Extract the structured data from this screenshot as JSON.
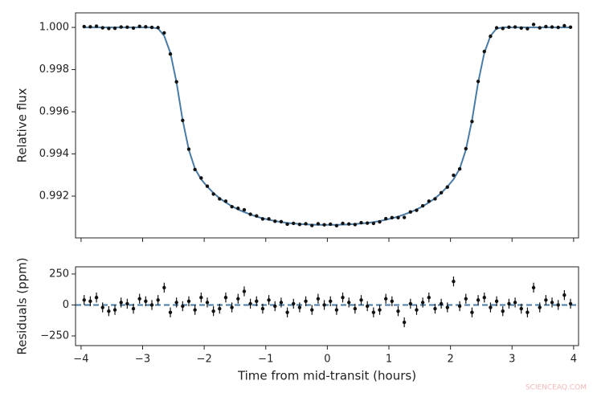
{
  "chart_data": [
    {
      "type": "scatter",
      "ylabel": "Relative flux",
      "x": [
        -3.95,
        -3.85,
        -3.75,
        -3.65,
        -3.55,
        -3.45,
        -3.35,
        -3.25,
        -3.15,
        -3.05,
        -2.95,
        -2.85,
        -2.75,
        -2.65,
        -2.55,
        -2.45,
        -2.35,
        -2.25,
        -2.15,
        -2.05,
        -1.95,
        -1.85,
        -1.75,
        -1.65,
        -1.55,
        -1.45,
        -1.35,
        -1.25,
        -1.15,
        -1.05,
        -0.95,
        -0.85,
        -0.75,
        -0.65,
        -0.55,
        -0.45,
        -0.35,
        -0.25,
        -0.15,
        -0.05,
        0.05,
        0.15,
        0.25,
        0.35,
        0.45,
        0.55,
        0.65,
        0.75,
        0.85,
        0.95,
        1.05,
        1.15,
        1.25,
        1.35,
        1.45,
        1.55,
        1.65,
        1.75,
        1.85,
        1.95,
        2.05,
        2.15,
        2.25,
        2.35,
        2.45,
        2.55,
        2.65,
        2.75,
        2.85,
        2.95,
        3.05,
        3.15,
        3.25,
        3.35,
        3.45,
        3.55,
        3.65,
        3.75,
        3.85,
        3.95
      ],
      "values": [
        1.00004,
        1.00003,
        1.00006,
        0.99998,
        0.99995,
        0.99996,
        1.00002,
        1.00001,
        0.99997,
        1.00005,
        1.00003,
        1.0,
        0.99999,
        0.99974,
        0.99874,
        0.99742,
        0.99559,
        0.99423,
        0.99326,
        0.99286,
        0.99247,
        0.9921,
        0.99187,
        0.99176,
        0.9915,
        0.99142,
        0.99135,
        0.99114,
        0.99106,
        0.99092,
        0.99092,
        0.99081,
        0.99079,
        0.99067,
        0.99071,
        0.99066,
        0.99069,
        0.99061,
        0.99069,
        0.99064,
        0.99067,
        0.9906,
        0.99071,
        0.99068,
        0.99065,
        0.99074,
        0.99072,
        0.99071,
        0.99078,
        0.99093,
        0.99098,
        0.99098,
        0.99099,
        0.99125,
        0.99133,
        0.99154,
        0.99176,
        0.99187,
        0.99216,
        0.99243,
        0.99299,
        0.99329,
        0.99425,
        0.99554,
        0.99744,
        0.99886,
        0.99958,
        0.99998,
        0.99995,
        1.00001,
        1.00002,
        0.99997,
        0.99994,
        1.00014,
        0.99998,
        1.00004,
        1.00002,
        1.0,
        1.00008,
        1.00001
      ],
      "color": "#111111",
      "model": {
        "color": "#4a7ba6",
        "values": [
          1.0,
          1.0,
          1.0,
          1.0,
          1.0,
          1.0,
          1.0,
          1.0,
          1.0,
          1.0,
          1.0,
          1.0,
          0.99995,
          0.9996,
          0.9988,
          0.9974,
          0.9956,
          0.9942,
          0.9933,
          0.9928,
          0.99245,
          0.99215,
          0.9919,
          0.9917,
          0.99152,
          0.99137,
          0.99124,
          0.99113,
          0.99103,
          0.99095,
          0.99088,
          0.99082,
          0.99077,
          0.99073,
          0.9907,
          0.99068,
          0.99066,
          0.99065,
          0.99064,
          0.99064,
          0.99064,
          0.99064,
          0.99065,
          0.99066,
          0.99068,
          0.9907,
          0.99073,
          0.99077,
          0.99082,
          0.99088,
          0.99095,
          0.99103,
          0.99113,
          0.99124,
          0.99137,
          0.99152,
          0.9917,
          0.9919,
          0.99215,
          0.99245,
          0.9928,
          0.9933,
          0.9942,
          0.9956,
          0.9974,
          0.9988,
          0.9996,
          0.99995,
          1.0,
          1.0,
          1.0,
          1.0,
          1.0,
          1.0,
          1.0,
          1.0,
          1.0,
          1.0,
          1.0,
          1.0
        ]
      },
      "xlim": [
        -4.09,
        4.08
      ],
      "ylim": [
        0.99002,
        1.00069
      ],
      "xticks": [
        -4,
        -3,
        -2,
        -1,
        0,
        1,
        2,
        3,
        4
      ],
      "yticks": [
        0.992,
        0.994,
        0.996,
        0.998,
        {
          "value": 1,
          "label": "1.000"
        }
      ]
    },
    {
      "type": "errorbar",
      "ylabel": "Residuals (ppm)",
      "xlabel": "Time from mid-transit (hours)",
      "x": [
        -3.95,
        -3.85,
        -3.75,
        -3.65,
        -3.55,
        -3.45,
        -3.35,
        -3.25,
        -3.15,
        -3.05,
        -2.95,
        -2.85,
        -2.75,
        -2.65,
        -2.55,
        -2.45,
        -2.35,
        -2.25,
        -2.15,
        -2.05,
        -1.95,
        -1.85,
        -1.75,
        -1.65,
        -1.55,
        -1.45,
        -1.35,
        -1.25,
        -1.15,
        -1.05,
        -0.95,
        -0.85,
        -0.75,
        -0.65,
        -0.55,
        -0.45,
        -0.35,
        -0.25,
        -0.15,
        -0.05,
        0.05,
        0.15,
        0.25,
        0.35,
        0.45,
        0.55,
        0.65,
        0.75,
        0.85,
        0.95,
        1.05,
        1.15,
        1.25,
        1.35,
        1.45,
        1.55,
        1.65,
        1.75,
        1.85,
        1.95,
        2.05,
        2.15,
        2.25,
        2.35,
        2.45,
        2.55,
        2.65,
        2.75,
        2.85,
        2.95,
        3.05,
        3.15,
        3.25,
        3.35,
        3.45,
        3.55,
        3.65,
        3.75,
        3.85,
        3.95
      ],
      "values": [
        40,
        30,
        60,
        -20,
        -50,
        -40,
        20,
        10,
        -30,
        50,
        30,
        0,
        40,
        140,
        -60,
        20,
        -10,
        30,
        -40,
        60,
        20,
        -50,
        -30,
        60,
        -20,
        50,
        110,
        10,
        30,
        -30,
        40,
        -10,
        20,
        -60,
        10,
        -20,
        30,
        -40,
        50,
        0,
        30,
        -40,
        60,
        20,
        -30,
        40,
        -10,
        -60,
        -40,
        50,
        30,
        -50,
        -140,
        10,
        -40,
        20,
        60,
        -30,
        10,
        -20,
        190,
        -10,
        50,
        -60,
        40,
        60,
        -20,
        30,
        -50,
        10,
        20,
        -30,
        -60,
        140,
        -20,
        40,
        20,
        0,
        80,
        10
      ],
      "error": 40,
      "color": "#111111",
      "reference_line": {
        "value": 0,
        "color": "#4a7ba6"
      },
      "xlim": [
        -4.09,
        4.08
      ],
      "ylim": [
        -328,
        308
      ],
      "xticks": [
        {
          "value": -4,
          "label": "−4"
        },
        {
          "value": -3,
          "label": "−3"
        },
        {
          "value": -2,
          "label": "−2"
        },
        {
          "value": -1,
          "label": "−1"
        },
        0,
        1,
        2,
        3,
        4
      ],
      "yticks": [
        {
          "value": -250,
          "label": "−250"
        },
        0,
        250
      ]
    }
  ],
  "watermark": "SCIENCEAQ.COM"
}
